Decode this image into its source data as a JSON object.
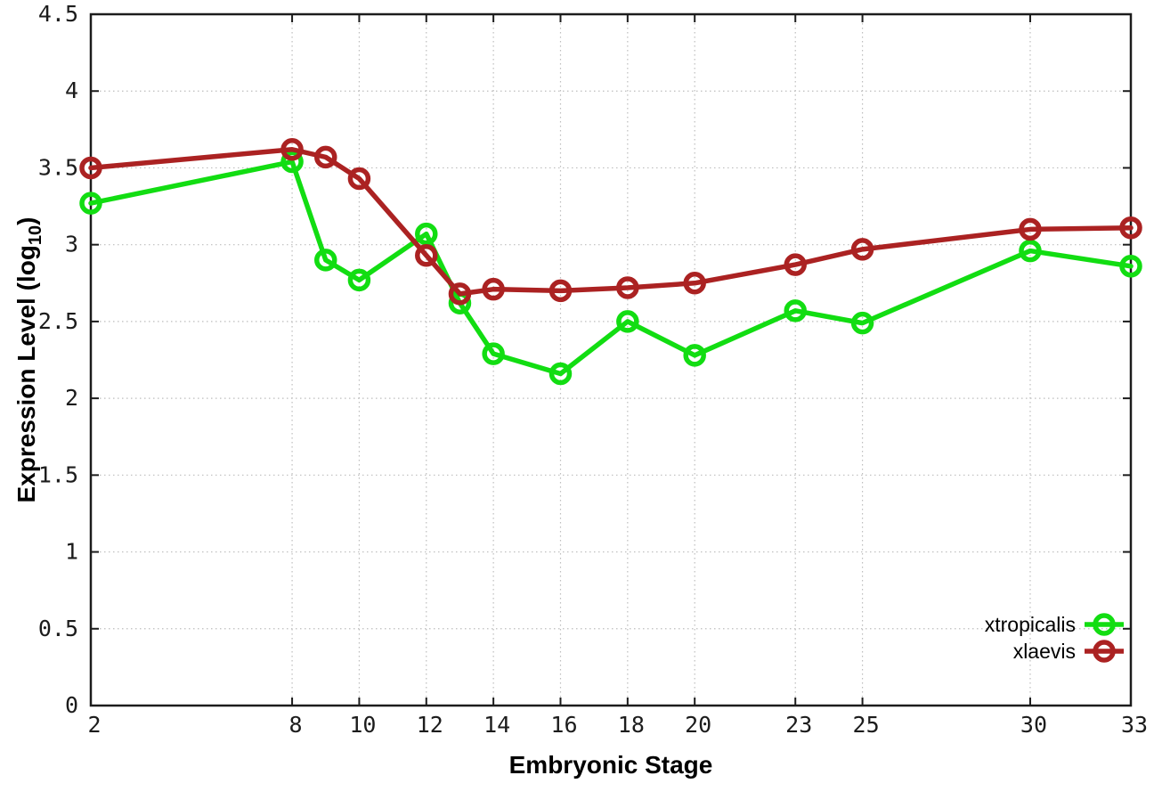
{
  "chart_data": {
    "type": "line",
    "title": "",
    "xlabel": "Embryonic Stage",
    "ylabel": "Expression Level (log10)",
    "ylabel_parts": {
      "pre": "Expression Level (log",
      "sub": "10",
      "post": ")"
    },
    "x": [
      2,
      8,
      9,
      10,
      12,
      13,
      14,
      16,
      18,
      20,
      23,
      25,
      30,
      33
    ],
    "series": [
      {
        "name": "xtropicalis",
        "color": "#12dd12",
        "values": [
          3.27,
          3.54,
          2.9,
          2.77,
          3.07,
          2.62,
          2.29,
          2.16,
          2.5,
          2.28,
          2.57,
          2.49,
          2.96,
          2.86
        ]
      },
      {
        "name": "xlaevis",
        "color": "#ab2222",
        "values": [
          3.5,
          3.62,
          3.57,
          3.43,
          2.93,
          2.68,
          2.71,
          2.7,
          2.72,
          2.75,
          2.87,
          2.97,
          3.1,
          3.11
        ]
      }
    ],
    "xticks": [
      2,
      8,
      10,
      12,
      14,
      16,
      18,
      20,
      23,
      25,
      30,
      33
    ],
    "yticks": [
      0,
      0.5,
      1,
      1.5,
      2,
      2.5,
      3,
      3.5,
      4,
      4.5
    ],
    "xlim": [
      2,
      33
    ],
    "ylim": [
      0,
      4.5
    ],
    "grid": true,
    "legend_position": "bottom-right",
    "colors": {
      "grid": "#bdbdbd",
      "axis": "#1c1c1c",
      "tick_text": "#1c1c1c",
      "legend_text": "#000000",
      "background": "#ffffff"
    }
  }
}
